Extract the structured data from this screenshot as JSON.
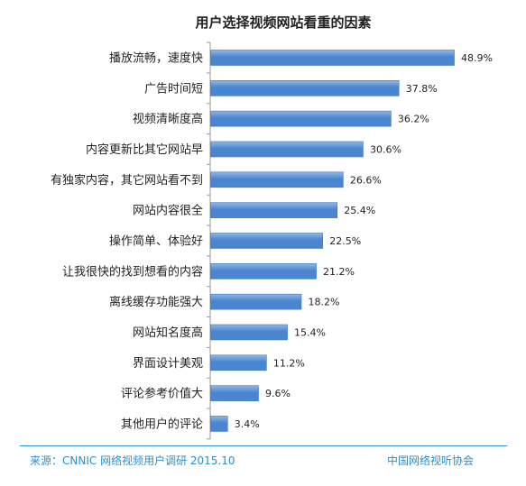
{
  "chart_data": {
    "type": "bar",
    "orientation": "horizontal",
    "title": "用户选择视频网站看重的因素",
    "categories": [
      "播放流畅，速度快",
      "广告时间短",
      "视频清晰度高",
      "内容更新比其它网站早",
      "有独家内容，其它网站看不到",
      "网站内容很全",
      "操作简单、体验好",
      "让我很快的找到想看的内容",
      "离线缓存功能强大",
      "网站知名度高",
      "界面设计美观",
      "评论参考价值大",
      "其他用户的评论"
    ],
    "values": [
      48.9,
      37.8,
      36.2,
      30.6,
      26.6,
      25.4,
      22.5,
      21.2,
      18.2,
      15.4,
      11.2,
      9.6,
      3.4
    ],
    "value_labels": [
      "48.9%",
      "37.8%",
      "36.2%",
      "30.6%",
      "26.6%",
      "25.4%",
      "22.5%",
      "21.2%",
      "18.2%",
      "15.4%",
      "11.2%",
      "9.6%",
      "3.4%"
    ],
    "unit": "%",
    "xlim": [
      0,
      50
    ],
    "grid": false,
    "legend": "none",
    "bar_color": "#4a86cf",
    "bar_gradient_light": "#8fb8e8",
    "axis_color": "#999999"
  },
  "footer": {
    "source": "来源：CNNIC 网络视频用户调研   2015.10",
    "organization": "中国网络视听协会",
    "color": "#2a8fd1"
  }
}
